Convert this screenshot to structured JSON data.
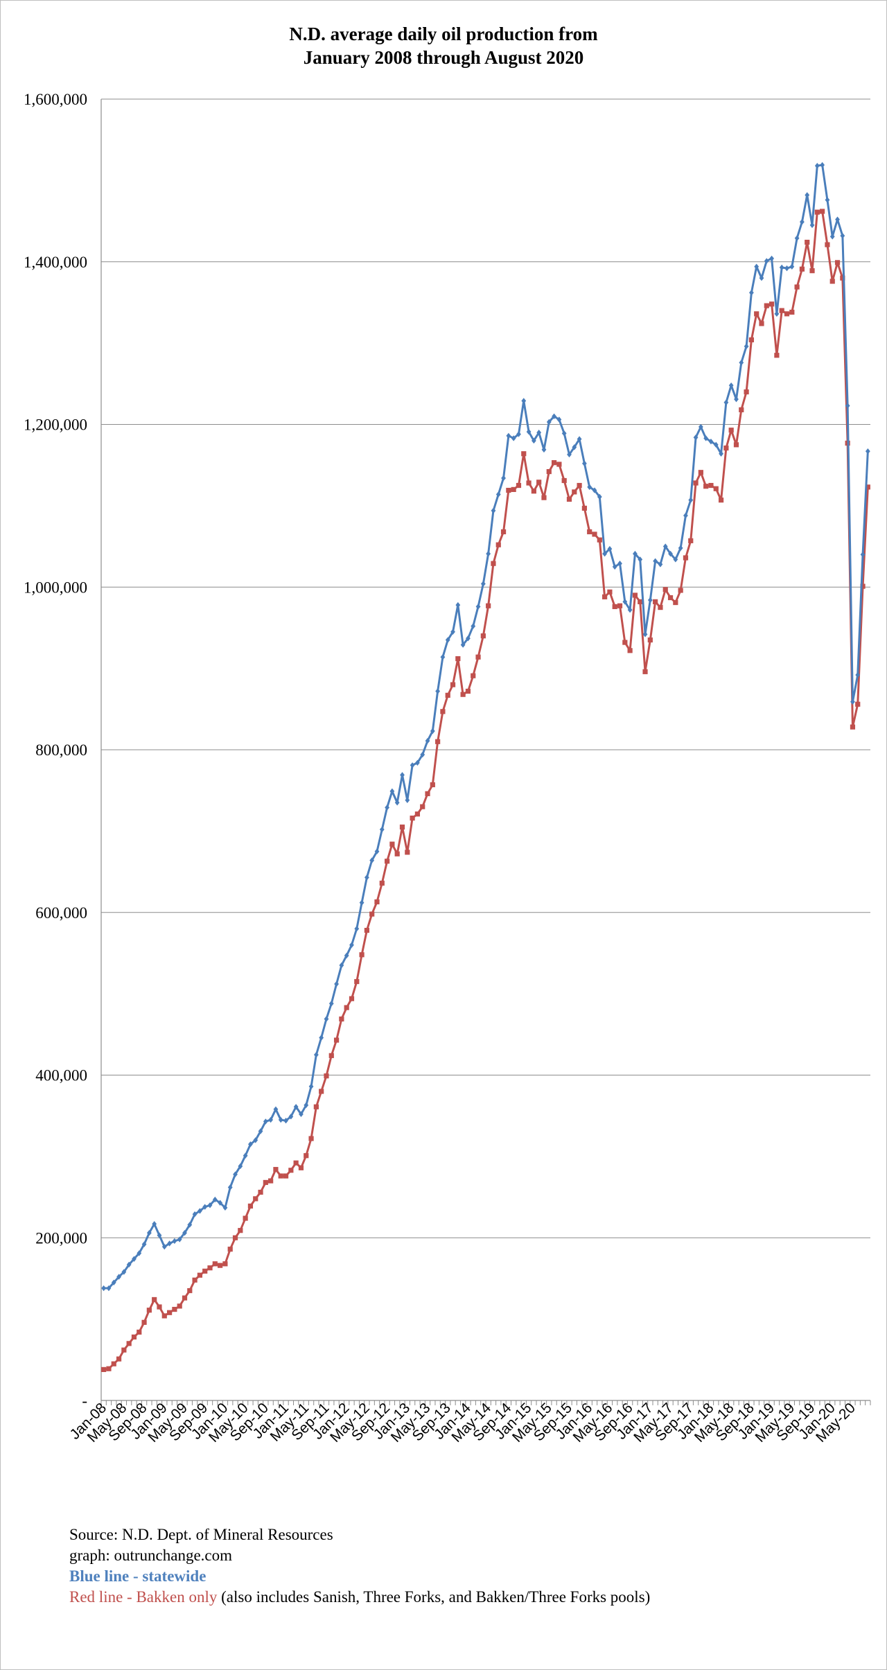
{
  "title": {
    "line1": "N.D. average daily oil production from",
    "line2": "January 2008 through August 2020"
  },
  "notes": {
    "source": "Source: N.D. Dept. of Mineral Resources",
    "graph": "graph: outrunchange.com",
    "blue": "Blue line - statewide",
    "red_label": "Red line - Bakken only",
    "red_extra": " (also includes Sanish, Three Forks, and Bakken/Three Forks pools)"
  },
  "chart_data": {
    "type": "line",
    "y_ticks": [
      {
        "value": 0,
        "label": "-"
      },
      {
        "value": 200000,
        "label": "200,000"
      },
      {
        "value": 400000,
        "label": "400,000"
      },
      {
        "value": 600000,
        "label": "600,000"
      },
      {
        "value": 800000,
        "label": "800,000"
      },
      {
        "value": 1000000,
        "label": "1,000,000"
      },
      {
        "value": 1200000,
        "label": "1,200,000"
      },
      {
        "value": 1400000,
        "label": "1,400,000"
      },
      {
        "value": 1600000,
        "label": "1,600,000"
      }
    ],
    "ylim": [
      0,
      1600000
    ],
    "grid": true,
    "x_start": "Jan-08",
    "x_end": "Aug-20",
    "x_tick_labels": [
      "Jan-08",
      "May-08",
      "Sep-08",
      "Jan-09",
      "May-09",
      "Sep-09",
      "Jan-10",
      "May-10",
      "Sep-10",
      "Jan-11",
      "May-11",
      "Sep-11",
      "Jan-12",
      "May-12",
      "Sep-12",
      "Jan-13",
      "May-13",
      "Sep-13",
      "Jan-14",
      "May-14",
      "Sep-14",
      "Jan-15",
      "May-15",
      "Sep-15",
      "Jan-16",
      "May-16",
      "Sep-16",
      "Jan-17",
      "May-17",
      "Sep-17",
      "Jan-18",
      "May-18",
      "Sep-18",
      "Jan-19",
      "May-19",
      "Sep-19",
      "Jan-20",
      "May-20"
    ],
    "series": [
      {
        "color": "#4a7ebb",
        "values": [
          138000,
          138000,
          145000,
          152000,
          158000,
          167000,
          174000,
          181000,
          192000,
          206000,
          217000,
          203000,
          189000,
          193000,
          196000,
          198000,
          206000,
          216000,
          229000,
          233000,
          238000,
          240000,
          247000,
          243000,
          237000,
          262000,
          278000,
          288000,
          301000,
          315000,
          320000,
          331000,
          343000,
          345000,
          358000,
          345000,
          344000,
          349000,
          361000,
          352000,
          363000,
          386000,
          425000,
          446000,
          469000,
          488000,
          512000,
          535000,
          547000,
          560000,
          580000,
          612000,
          643000,
          664000,
          675000,
          702000,
          729000,
          749000,
          735000,
          769000,
          738000,
          781000,
          784000,
          794000,
          811000,
          823000,
          872000,
          914000,
          935000,
          945000,
          978000,
          929000,
          937000,
          952000,
          976000,
          1004000,
          1041000,
          1094000,
          1114000,
          1134000,
          1186000,
          1183000,
          1188000,
          1229000,
          1191000,
          1180000,
          1190000,
          1169000,
          1203000,
          1210000,
          1206000,
          1189000,
          1163000,
          1172000,
          1182000,
          1152000,
          1123000,
          1119000,
          1111000,
          1041000,
          1047000,
          1025000,
          1029000,
          982000,
          972000,
          1041000,
          1034000,
          942000,
          984000,
          1032000,
          1028000,
          1050000,
          1041000,
          1034000,
          1048000,
          1088000,
          1107000,
          1184000,
          1197000,
          1183000,
          1179000,
          1175000,
          1164000,
          1227000,
          1248000,
          1231000,
          1276000,
          1296000,
          1362000,
          1394000,
          1380000,
          1401000,
          1404000,
          1336000,
          1393000,
          1392000,
          1394000,
          1429000,
          1449000,
          1482000,
          1445000,
          1518000,
          1519000,
          1476000,
          1431000,
          1452000,
          1432000,
          1223000,
          859000,
          892000,
          1040000,
          1167000
        ]
      },
      {
        "color": "#c0504d",
        "values": [
          38000,
          39000,
          45000,
          51000,
          62000,
          70000,
          78000,
          84000,
          96000,
          111000,
          124000,
          115000,
          104000,
          108000,
          112000,
          116000,
          126000,
          135000,
          148000,
          154000,
          159000,
          163000,
          168000,
          166000,
          168000,
          186000,
          200000,
          209000,
          224000,
          239000,
          248000,
          256000,
          268000,
          270000,
          284000,
          276000,
          276000,
          283000,
          292000,
          286000,
          301000,
          322000,
          361000,
          380000,
          399000,
          424000,
          443000,
          469000,
          483000,
          494000,
          515000,
          548000,
          578000,
          598000,
          613000,
          636000,
          663000,
          684000,
          672000,
          705000,
          674000,
          716000,
          721000,
          730000,
          746000,
          757000,
          810000,
          847000,
          867000,
          880000,
          912000,
          868000,
          872000,
          891000,
          914000,
          940000,
          977000,
          1029000,
          1052000,
          1068000,
          1119000,
          1120000,
          1125000,
          1164000,
          1128000,
          1118000,
          1129000,
          1110000,
          1142000,
          1153000,
          1151000,
          1131000,
          1108000,
          1117000,
          1125000,
          1097000,
          1068000,
          1065000,
          1058000,
          988000,
          994000,
          976000,
          977000,
          932000,
          922000,
          990000,
          982000,
          896000,
          935000,
          982000,
          975000,
          997000,
          987000,
          981000,
          996000,
          1036000,
          1057000,
          1128000,
          1141000,
          1124000,
          1125000,
          1121000,
          1107000,
          1171000,
          1193000,
          1175000,
          1218000,
          1240000,
          1304000,
          1336000,
          1324000,
          1346000,
          1348000,
          1285000,
          1340000,
          1336000,
          1338000,
          1369000,
          1391000,
          1424000,
          1389000,
          1461000,
          1462000,
          1421000,
          1376000,
          1399000,
          1380000,
          1177000,
          828000,
          856000,
          1001000,
          1123000
        ]
      }
    ]
  }
}
